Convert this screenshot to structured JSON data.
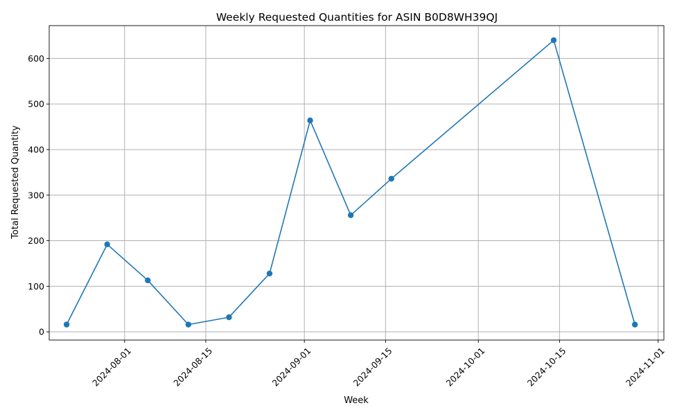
{
  "chart_data": {
    "type": "line",
    "title": "Weekly Requested Quantities for ASIN B0D8WH39QJ",
    "xlabel": "Week",
    "ylabel": "Total Requested Quantity",
    "x_scale": "date",
    "xlim": [
      "2024-07-19",
      "2024-11-02"
    ],
    "ylim": [
      -18,
      672
    ],
    "x_ticks": [
      "2024-08-01",
      "2024-08-15",
      "2024-09-01",
      "2024-09-15",
      "2024-10-01",
      "2024-10-15",
      "2024-11-01"
    ],
    "y_ticks": [
      0,
      100,
      200,
      300,
      400,
      500,
      600
    ],
    "grid": true,
    "series": [
      {
        "color": "#1f77b4",
        "x": [
          "2024-07-22",
          "2024-07-29",
          "2024-08-05",
          "2024-08-12",
          "2024-08-19",
          "2024-08-26",
          "2024-09-02",
          "2024-09-09",
          "2024-09-16",
          "2024-10-14",
          "2024-10-28"
        ],
        "values": [
          16,
          192,
          113,
          16,
          32,
          128,
          464,
          256,
          336,
          640,
          16
        ]
      }
    ]
  }
}
